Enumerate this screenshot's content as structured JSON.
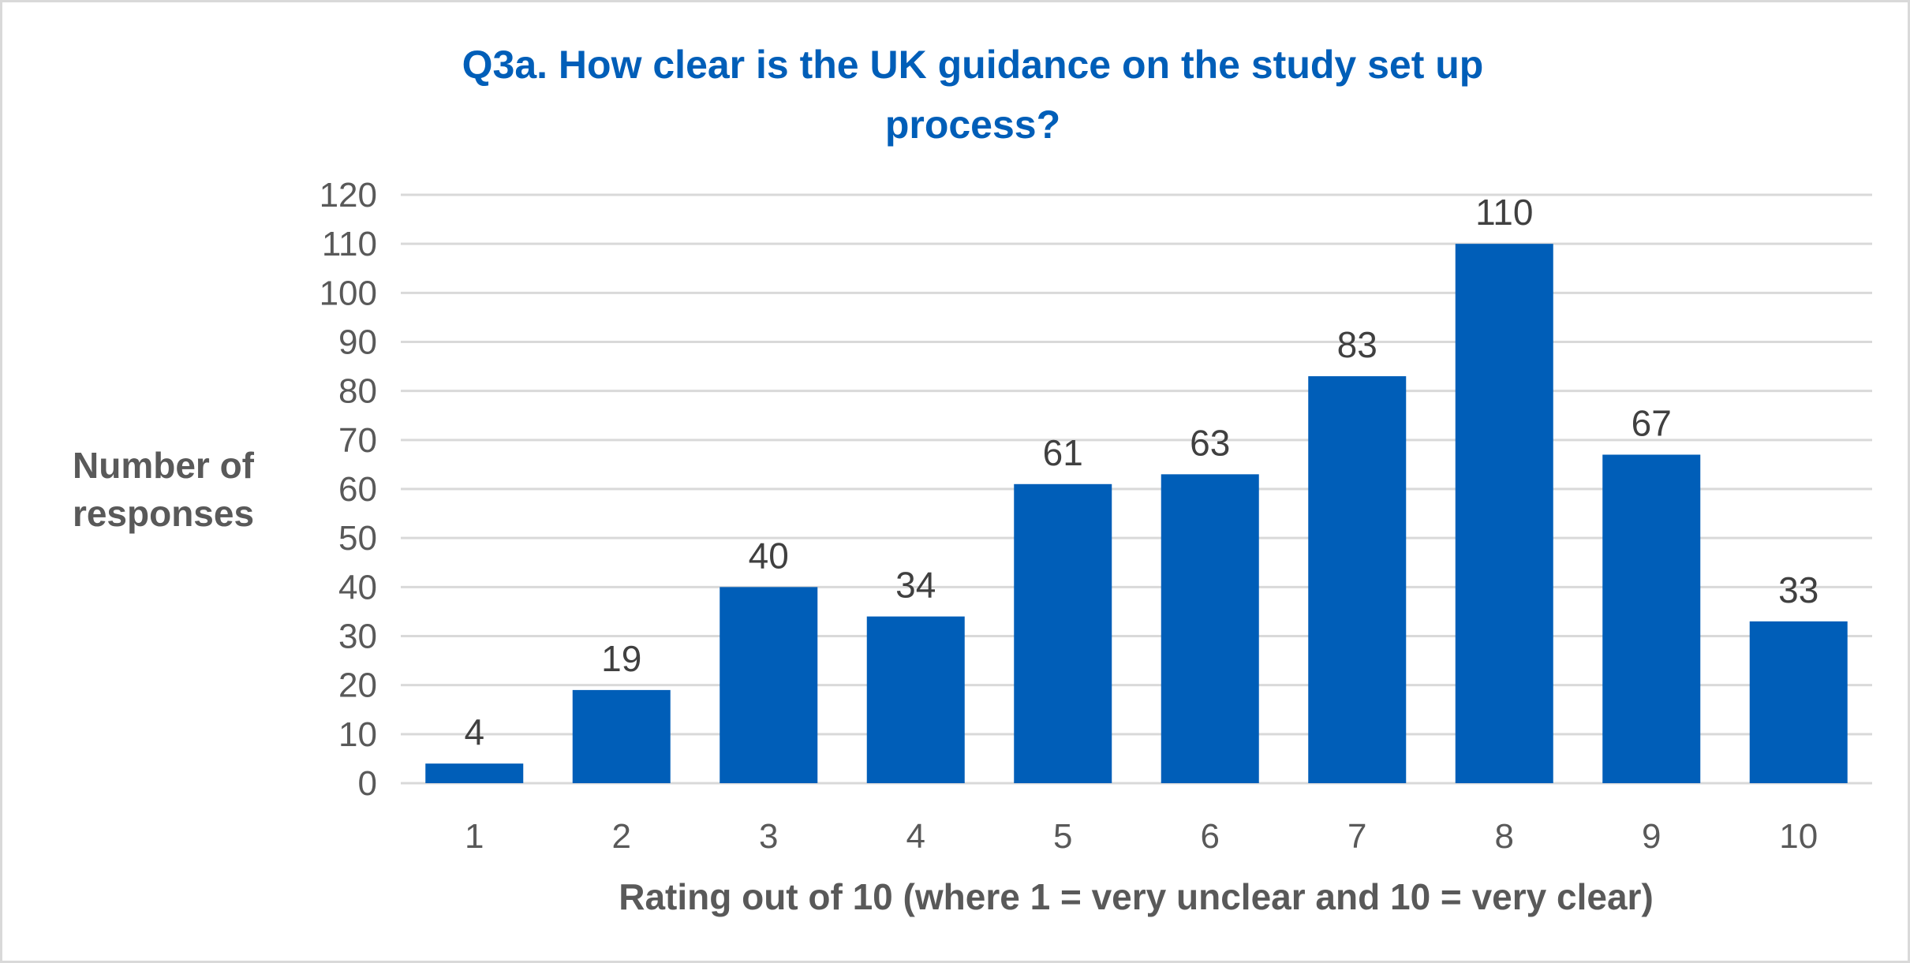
{
  "chart_data": {
    "type": "bar",
    "title": [
      "Q3a. How clear is the UK guidance on the study set up",
      "process?"
    ],
    "xlabel": "Rating out of 10 (where 1 = very unclear and 10 = very clear)",
    "ylabel": [
      "Number of",
      "responses"
    ],
    "categories": [
      "1",
      "2",
      "3",
      "4",
      "5",
      "6",
      "7",
      "8",
      "9",
      "10"
    ],
    "values": [
      4,
      19,
      40,
      34,
      61,
      63,
      83,
      110,
      67,
      33
    ],
    "ylim": [
      0,
      120
    ],
    "yticks": [
      0,
      10,
      20,
      30,
      40,
      50,
      60,
      70,
      80,
      90,
      100,
      110,
      120
    ],
    "grid": true,
    "data_labels": true,
    "legend": "none",
    "colors": {
      "bar": "#005eb8",
      "title": "#005eb8",
      "grid": "#d9d9d9",
      "text": "#595959"
    }
  }
}
